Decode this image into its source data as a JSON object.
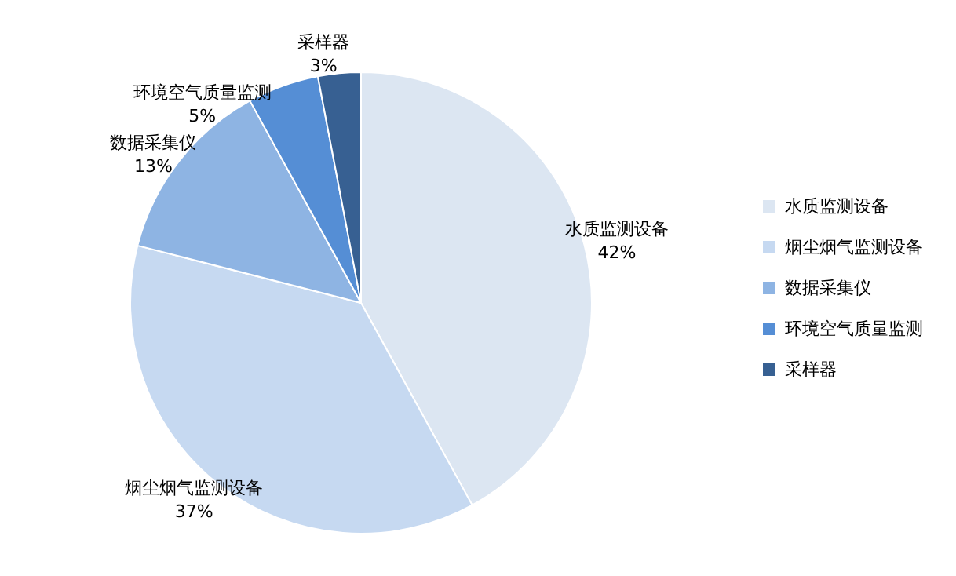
{
  "chart_data": {
    "type": "pie",
    "categories": [
      "水质监测设备",
      "烟尘烟气监测设备",
      "数据采集仪",
      "环境空气质量监测",
      "采样器"
    ],
    "values": [
      42,
      37,
      13,
      5,
      3
    ],
    "colors": [
      "#dce6f2",
      "#c6d9f1",
      "#8eb4e3",
      "#558ed5",
      "#376092"
    ],
    "value_labels": [
      "42%",
      "37%",
      "13%",
      "5%",
      "3%"
    ],
    "legend": "right"
  }
}
